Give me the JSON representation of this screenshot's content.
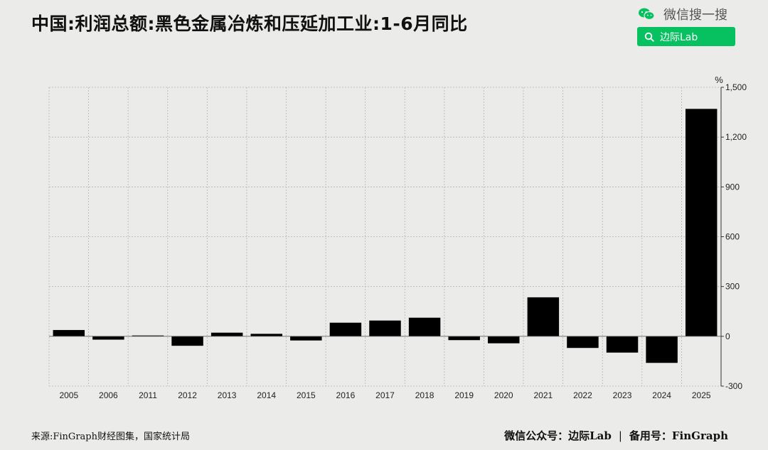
{
  "title": "中国:利润总额:黑色金属冶炼和压延加工业:1-6月同比",
  "wechat": {
    "search_text": "微信搜一搜",
    "search_box_label": "边际Lab",
    "brand_color": "#07c160",
    "icon": "wechat-icon"
  },
  "footer": {
    "source": "来源:FinGraph财经图集，国家统计局",
    "account": "微信公众号：边际Lab",
    "separator": "|",
    "backup": "备用号：FinGraph"
  },
  "chart_data": {
    "type": "bar",
    "title": "中国:利润总额:黑色金属冶炼和压延加工业:1-6月同比",
    "unit": "%",
    "categories": [
      "2005",
      "2006",
      "2011",
      "2012",
      "2013",
      "2014",
      "2015",
      "2016",
      "2017",
      "2018",
      "2019",
      "2020",
      "2021",
      "2022",
      "2023",
      "2024",
      "2025"
    ],
    "values": [
      38,
      -20,
      5,
      -57,
      22,
      15,
      -25,
      82,
      95,
      112,
      -23,
      -42,
      235,
      -70,
      -98,
      -160,
      1370
    ],
    "ylim": [
      -300,
      1500
    ],
    "yticks": [
      -300,
      0,
      300,
      600,
      900,
      1200,
      1500
    ],
    "ytick_labels": [
      "-300",
      "0",
      "300",
      "600",
      "900",
      "1,200",
      "1,500"
    ],
    "y_axis_position": "right",
    "grid": true,
    "bar_color": "#000000"
  }
}
